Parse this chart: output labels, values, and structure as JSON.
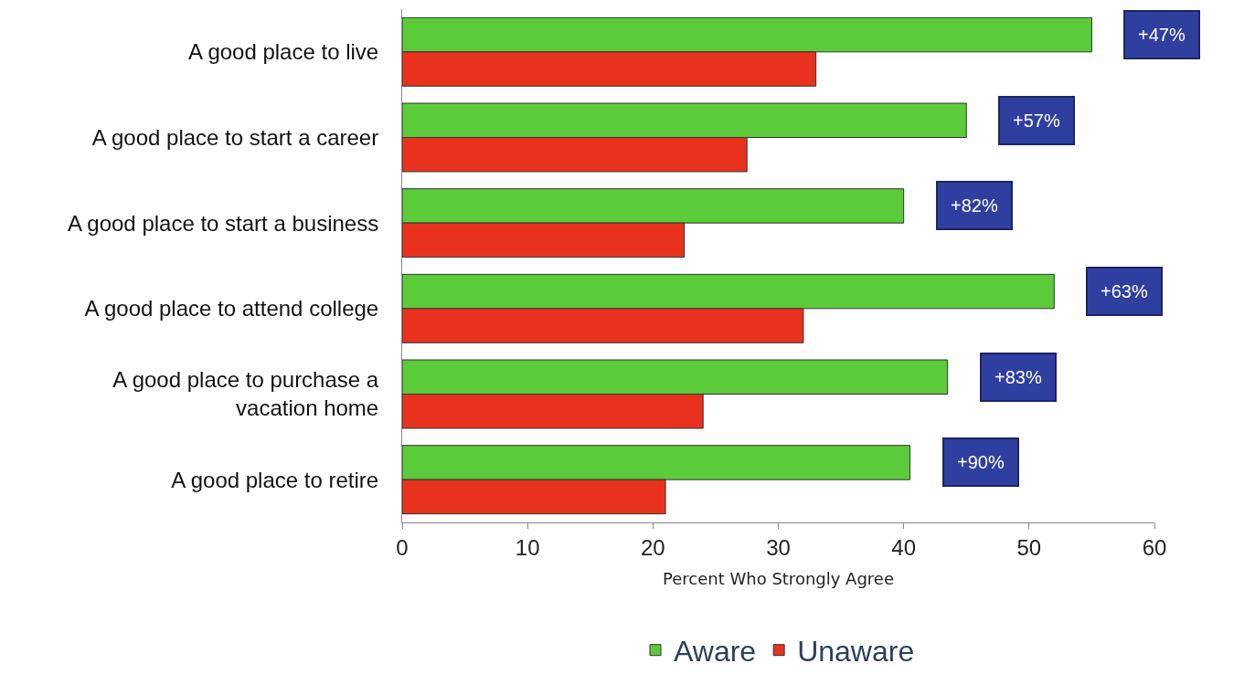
{
  "chart_data": {
    "type": "bar",
    "orientation": "horizontal",
    "categories": [
      "A good place to live",
      "A good place to start a career",
      "A good place to start a business",
      "A good place to attend college",
      "A good place to purchase a vacation home",
      "A good place to retire"
    ],
    "series": [
      {
        "name": "Aware",
        "color": "#5ccb3a",
        "values": [
          55,
          45,
          40,
          52,
          43.5,
          40.5
        ]
      },
      {
        "name": "Unaware",
        "color": "#e8321e",
        "values": [
          33,
          27.5,
          22.5,
          32,
          24,
          21
        ]
      }
    ],
    "xlabel": "Percent Who Strongly Agree",
    "xlim": [
      0,
      60
    ],
    "xticks": [
      0,
      10,
      20,
      30,
      40,
      50,
      60
    ],
    "legend": "bottom",
    "annotations": [
      {
        "text": "+47%",
        "x": 55,
        "y": "A good place to live"
      },
      {
        "text": "+57%",
        "x": 45,
        "y": "A good place to start a career"
      },
      {
        "text": "+82%",
        "x": 40,
        "y": "A good place to start a business"
      },
      {
        "text": "+63%",
        "x": 52,
        "y": "A good place to attend college"
      },
      {
        "text": "+83%",
        "x": 43.5,
        "y": "A good place to purchase a vacation home"
      },
      {
        "text": "+90%",
        "x": 40.5,
        "y": "A good place to retire"
      }
    ]
  }
}
